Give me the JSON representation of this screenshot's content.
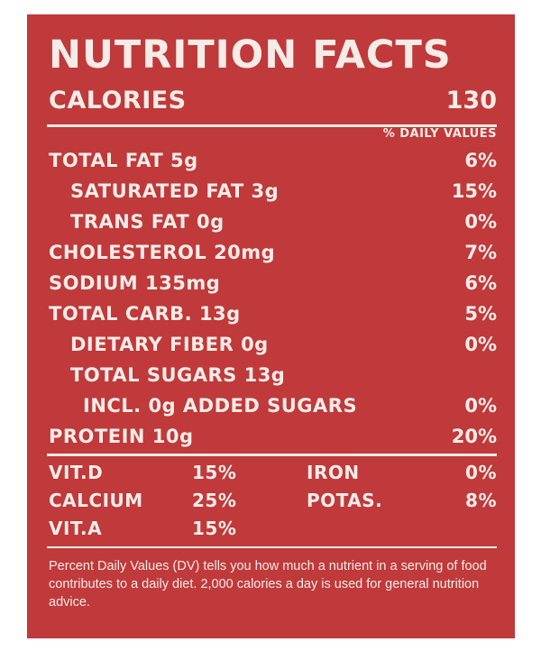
{
  "title": "NUTRITION FACTS",
  "calories": {
    "label": "CALORIES",
    "value": "130"
  },
  "daily_values_header": "% DAILY VALUES",
  "nutrients": [
    {
      "label": "TOTAL FAT 5g",
      "dv": "6%"
    },
    {
      "label": "SATURATED FAT 3g",
      "dv": "15%"
    },
    {
      "label": "TRANS FAT 0g",
      "dv": "0%"
    },
    {
      "label": "CHOLESTEROL 20mg",
      "dv": "7%"
    },
    {
      "label": "SODIUM 135mg",
      "dv": "6%"
    },
    {
      "label": "TOTAL CARB. 13g",
      "dv": "5%"
    },
    {
      "label": "DIETARY FIBER 0g",
      "dv": "0%"
    },
    {
      "label": "TOTAL SUGARS 13g",
      "dv": ""
    },
    {
      "label": "INCL. 0g ADDED SUGARS",
      "dv": "0%"
    },
    {
      "label": "PROTEIN 10g",
      "dv": "20%"
    }
  ],
  "vitamins": [
    {
      "label": "VIT.D",
      "dv": "15%"
    },
    {
      "label": "IRON",
      "dv": "0%"
    },
    {
      "label": "CALCIUM",
      "dv": "25%"
    },
    {
      "label": "POTAS.",
      "dv": "8%"
    },
    {
      "label": "VIT.A",
      "dv": "15%"
    }
  ],
  "footnote": "Percent Daily Values (DV) tells you how much a nutrient in a serving of food contributes to a daily diet. 2,000 calories a day is used for general nutrition advice.",
  "colors": {
    "panel": "#c0393b",
    "text": "#f6ece7"
  }
}
